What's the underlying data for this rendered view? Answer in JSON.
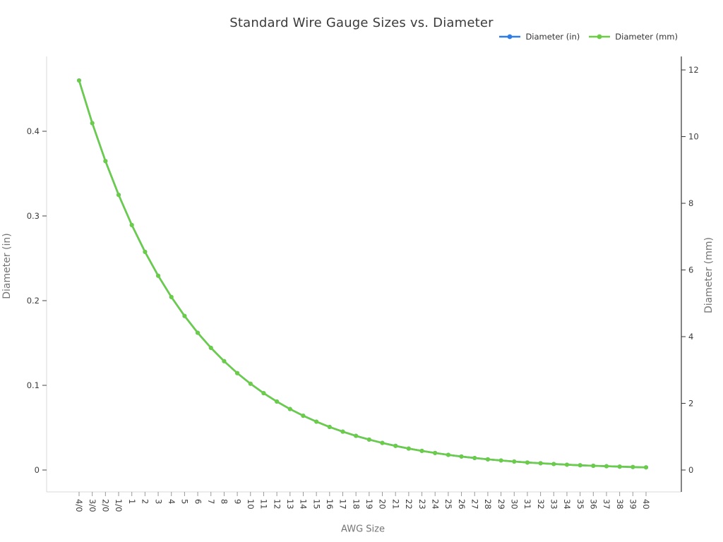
{
  "chart_data": {
    "type": "line",
    "title": "Standard Wire Gauge Sizes vs. Diameter",
    "xlabel": "AWG Size",
    "ylabel_left": "Diameter (in)",
    "ylabel_right": "Diameter (mm)",
    "legend_position": "top-right",
    "grid": false,
    "marker_style": "circle",
    "categories": [
      "4/0",
      "3/0",
      "2/0",
      "1/0",
      "1",
      "2",
      "3",
      "4",
      "5",
      "6",
      "7",
      "8",
      "9",
      "10",
      "11",
      "12",
      "13",
      "14",
      "15",
      "16",
      "17",
      "18",
      "19",
      "20",
      "21",
      "22",
      "23",
      "24",
      "25",
      "26",
      "27",
      "28",
      "29",
      "30",
      "31",
      "32",
      "33",
      "34",
      "35",
      "36",
      "37",
      "38",
      "39",
      "40"
    ],
    "left_axis": {
      "tick_labels": [
        "0",
        "0.1",
        "0.2",
        "0.3",
        "0.4"
      ],
      "tick_values": [
        0,
        0.1,
        0.2,
        0.3,
        0.4
      ],
      "range": [
        -0.026,
        0.488
      ]
    },
    "right_axis": {
      "tick_labels": [
        "0",
        "2",
        "4",
        "6",
        "8",
        "10",
        "12"
      ],
      "tick_values": [
        0,
        2,
        4,
        6,
        8,
        10,
        12
      ],
      "range": [
        -0.66,
        12.4
      ]
    },
    "series": [
      {
        "name": "Diameter (in)",
        "axis": "left",
        "color": "#2e7de9",
        "values": [
          0.46,
          0.4096,
          0.3648,
          0.3249,
          0.2893,
          0.2576,
          0.2294,
          0.2043,
          0.1819,
          0.162,
          0.1443,
          0.1285,
          0.1144,
          0.1019,
          0.0907,
          0.0808,
          0.072,
          0.0641,
          0.0571,
          0.0508,
          0.0453,
          0.0403,
          0.0359,
          0.032,
          0.0285,
          0.0253,
          0.0226,
          0.0201,
          0.0179,
          0.0159,
          0.0142,
          0.0126,
          0.0113,
          0.01,
          0.0089,
          0.008,
          0.0071,
          0.0063,
          0.0056,
          0.005,
          0.0045,
          0.004,
          0.0035,
          0.0031
        ]
      },
      {
        "name": "Diameter (mm)",
        "axis": "right",
        "color": "#6bcd46",
        "values": [
          11.684,
          10.404,
          9.266,
          8.252,
          7.348,
          6.544,
          5.827,
          5.189,
          4.621,
          4.115,
          3.665,
          3.264,
          2.906,
          2.588,
          2.305,
          2.053,
          1.828,
          1.628,
          1.45,
          1.291,
          1.15,
          1.024,
          0.912,
          0.812,
          0.723,
          0.644,
          0.573,
          0.511,
          0.455,
          0.405,
          0.361,
          0.32,
          0.287,
          0.254,
          0.226,
          0.203,
          0.18,
          0.16,
          0.142,
          0.127,
          0.114,
          0.102,
          0.089,
          0.079
        ]
      }
    ]
  }
}
